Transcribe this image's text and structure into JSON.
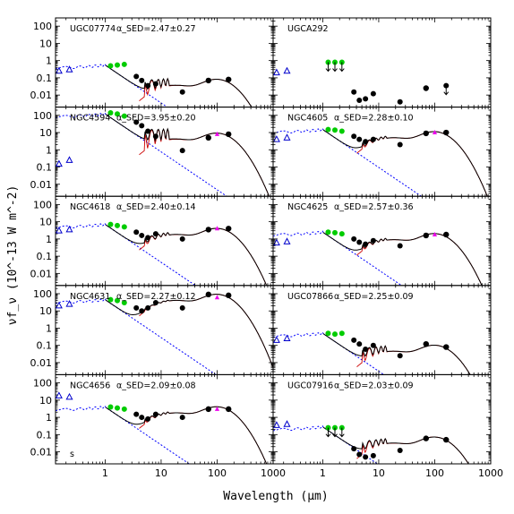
{
  "chart_data": {
    "type": "scatter",
    "layout": "5x2 grid of SED panels",
    "xlabel": "Wavelength (μm)",
    "ylabel": "νf_ν (10^-13 W m^-2)",
    "x_scale": "log",
    "y_scale": "log",
    "xlim": [
      0.13,
      1000
    ],
    "ylim": [
      0.002,
      300
    ],
    "x_ticks": [
      "1",
      "10",
      "100",
      "1000"
    ],
    "y_ticks": [
      "100",
      "10",
      "1",
      "0.1",
      "0.01"
    ],
    "panels": [
      {
        "galaxy": "UGC07774",
        "alpha_label": "α_SED=2.47±0.27",
        "level": 0.55,
        "fir_peak": 0.08,
        "galex": [
          {
            "x": 0.15,
            "y": 0.25
          },
          {
            "x": 0.23,
            "y": 0.3
          }
        ],
        "nir": [
          {
            "x": 1.25,
            "y": 0.5
          },
          {
            "x": 1.65,
            "y": 0.55
          },
          {
            "x": 2.2,
            "y": 0.6
          }
        ],
        "mir": [
          {
            "x": 3.6,
            "y": 0.12
          },
          {
            "x": 4.5,
            "y": 0.07
          },
          {
            "x": 5.8,
            "y": 0.035
          },
          {
            "x": 8,
            "y": 0.045
          },
          {
            "x": 24,
            "y": 0.015
          }
        ],
        "fir": [
          {
            "x": 70,
            "y": 0.07
          },
          {
            "x": 160,
            "y": 0.08
          }
        ]
      },
      {
        "galaxy": "UGCA292",
        "alpha_label": "",
        "level": null,
        "fir_peak": null,
        "galex": [
          {
            "x": 0.15,
            "y": 0.2
          },
          {
            "x": 0.23,
            "y": 0.25
          }
        ],
        "limits_nir": [
          {
            "x": 1.25,
            "y": 0.8
          },
          {
            "x": 1.65,
            "y": 0.8
          },
          {
            "x": 2.2,
            "y": 0.8
          }
        ],
        "mir": [
          {
            "x": 3.6,
            "y": 0.015
          },
          {
            "x": 4.5,
            "y": 0.005
          },
          {
            "x": 5.8,
            "y": 0.006
          },
          {
            "x": 8,
            "y": 0.012
          },
          {
            "x": 24,
            "y": 0.004
          }
        ],
        "fir": [
          {
            "x": 70,
            "y": 0.025
          }
        ],
        "limits_fir": [
          {
            "x": 160,
            "y": 0.035
          }
        ]
      },
      {
        "galaxy": "NGC4594",
        "alpha_label": "α_SED=3.95±0.20",
        "level": 120,
        "fir_peak": 9,
        "galex": [
          {
            "x": 0.15,
            "y": 0.15
          },
          {
            "x": 0.23,
            "y": 0.25
          }
        ],
        "nir": [
          {
            "x": 1.25,
            "y": 140
          },
          {
            "x": 1.65,
            "y": 120
          },
          {
            "x": 2.2,
            "y": 90
          }
        ],
        "mir": [
          {
            "x": 3.6,
            "y": 40
          },
          {
            "x": 4.5,
            "y": 25
          },
          {
            "x": 5.8,
            "y": 12
          },
          {
            "x": 8,
            "y": 6
          },
          {
            "x": 24,
            "y": 0.9
          }
        ],
        "fir": [
          {
            "x": 70,
            "y": 5
          },
          {
            "x": 160,
            "y": 8
          }
        ],
        "pink": [
          {
            "x": 100,
            "y": 8
          }
        ]
      },
      {
        "galaxy": "NGC4605",
        "alpha_label": "α_SED=2.28±0.10",
        "level": 15,
        "fir_peak": 11,
        "galex": [
          {
            "x": 0.15,
            "y": 4
          },
          {
            "x": 0.23,
            "y": 5
          }
        ],
        "nir": [
          {
            "x": 1.25,
            "y": 15
          },
          {
            "x": 1.65,
            "y": 14
          },
          {
            "x": 2.2,
            "y": 12
          }
        ],
        "mir": [
          {
            "x": 3.6,
            "y": 6
          },
          {
            "x": 4.5,
            "y": 4
          },
          {
            "x": 5.8,
            "y": 3
          },
          {
            "x": 8,
            "y": 4
          },
          {
            "x": 24,
            "y": 2
          }
        ],
        "fir": [
          {
            "x": 70,
            "y": 9
          },
          {
            "x": 160,
            "y": 10
          }
        ],
        "pink": [
          {
            "x": 100,
            "y": 10
          }
        ]
      },
      {
        "galaxy": "NGC4618",
        "alpha_label": "α_SED=2.40±0.14",
        "level": 7,
        "fir_peak": 4,
        "galex": [
          {
            "x": 0.15,
            "y": 3
          },
          {
            "x": 0.23,
            "y": 3.5
          }
        ],
        "nir": [
          {
            "x": 1.25,
            "y": 7
          },
          {
            "x": 1.65,
            "y": 6
          },
          {
            "x": 2.2,
            "y": 5
          }
        ],
        "mir": [
          {
            "x": 3.6,
            "y": 2.5
          },
          {
            "x": 4.5,
            "y": 1.6
          },
          {
            "x": 5.8,
            "y": 1.2
          },
          {
            "x": 8,
            "y": 2
          },
          {
            "x": 24,
            "y": 1
          }
        ],
        "fir": [
          {
            "x": 70,
            "y": 3.5
          },
          {
            "x": 160,
            "y": 4
          }
        ],
        "pink": [
          {
            "x": 100,
            "y": 4
          }
        ]
      },
      {
        "galaxy": "NGC4625",
        "alpha_label": "α_SED=2.57±0.36",
        "level": 2.5,
        "fir_peak": 2,
        "galex": [
          {
            "x": 0.15,
            "y": 0.6
          },
          {
            "x": 0.23,
            "y": 0.7
          }
        ],
        "nir": [
          {
            "x": 1.25,
            "y": 2.5
          },
          {
            "x": 1.65,
            "y": 2.3
          },
          {
            "x": 2.2,
            "y": 2
          }
        ],
        "mir": [
          {
            "x": 3.6,
            "y": 1
          },
          {
            "x": 4.5,
            "y": 0.65
          },
          {
            "x": 5.8,
            "y": 0.5
          },
          {
            "x": 8,
            "y": 0.8
          },
          {
            "x": 24,
            "y": 0.4
          }
        ],
        "fir": [
          {
            "x": 70,
            "y": 1.6
          },
          {
            "x": 160,
            "y": 1.8
          }
        ],
        "pink": [
          {
            "x": 100,
            "y": 1.8
          }
        ]
      },
      {
        "galaxy": "NGC4631",
        "alpha_label": "α_SED=2.27±0.12",
        "level": 45,
        "fir_peak": 90,
        "galex": [
          {
            "x": 0.15,
            "y": 20
          },
          {
            "x": 0.23,
            "y": 25
          }
        ],
        "nir": [
          {
            "x": 1.25,
            "y": 45
          },
          {
            "x": 1.65,
            "y": 40
          },
          {
            "x": 2.2,
            "y": 30
          }
        ],
        "mir": [
          {
            "x": 3.6,
            "y": 15
          },
          {
            "x": 4.5,
            "y": 10
          },
          {
            "x": 5.8,
            "y": 15
          },
          {
            "x": 8,
            "y": 30
          },
          {
            "x": 24,
            "y": 15
          }
        ],
        "fir": [
          {
            "x": 70,
            "y": 90
          },
          {
            "x": 160,
            "y": 80
          }
        ],
        "pink": [
          {
            "x": 100,
            "y": 60
          }
        ]
      },
      {
        "galaxy": "UGC07866",
        "alpha_label": "α_SED=2.25±0.09",
        "level": 0.5,
        "fir_peak": 0.1,
        "galex": [
          {
            "x": 0.15,
            "y": 0.2
          },
          {
            "x": 0.23,
            "y": 0.25
          }
        ],
        "nir": [
          {
            "x": 1.25,
            "y": 0.5
          },
          {
            "x": 1.65,
            "y": 0.45
          },
          {
            "x": 2.2,
            "y": 0.5
          }
        ],
        "mir": [
          {
            "x": 3.6,
            "y": 0.2
          },
          {
            "x": 4.5,
            "y": 0.12
          },
          {
            "x": 5.8,
            "y": 0.06
          },
          {
            "x": 8,
            "y": 0.1
          },
          {
            "x": 24,
            "y": 0.025
          }
        ],
        "fir": [
          {
            "x": 70,
            "y": 0.12
          },
          {
            "x": 160,
            "y": 0.08
          }
        ]
      },
      {
        "galaxy": "NGC4656",
        "alpha_label": "α_SED=2.09±0.08",
        "level": 4,
        "fir_peak": 4,
        "galex": [
          {
            "x": 0.15,
            "y": 18
          },
          {
            "x": 0.23,
            "y": 15
          }
        ],
        "nir": [
          {
            "x": 1.25,
            "y": 4
          },
          {
            "x": 1.65,
            "y": 3.5
          },
          {
            "x": 2.2,
            "y": 3
          }
        ],
        "mir": [
          {
            "x": 3.6,
            "y": 1.5
          },
          {
            "x": 4.5,
            "y": 1
          },
          {
            "x": 5.8,
            "y": 0.8
          },
          {
            "x": 8,
            "y": 1.5
          },
          {
            "x": 24,
            "y": 1
          }
        ],
        "fir": [
          {
            "x": 70,
            "y": 3
          },
          {
            "x": 160,
            "y": 3
          }
        ],
        "pink": [
          {
            "x": 100,
            "y": 3
          }
        ],
        "corner_label": "s"
      },
      {
        "galaxy": "UGC07916",
        "alpha_label": "α_SED=2.03±0.09",
        "level": 0.28,
        "fir_peak": 0.07,
        "galex": [
          {
            "x": 0.15,
            "y": 0.35
          },
          {
            "x": 0.23,
            "y": 0.4
          }
        ],
        "limits_nir": [
          {
            "x": 1.25,
            "y": 0.25
          },
          {
            "x": 1.65,
            "y": 0.25
          },
          {
            "x": 2.2,
            "y": 0.25
          }
        ],
        "mir": [
          {
            "x": 3.6,
            "y": 0.015
          },
          {
            "x": 4.5,
            "y": 0.007
          },
          {
            "x": 5.8,
            "y": 0.005
          },
          {
            "x": 8,
            "y": 0.006
          },
          {
            "x": 24,
            "y": 0.012
          }
        ],
        "fir": [
          {
            "x": 70,
            "y": 0.06
          },
          {
            "x": 160,
            "y": 0.05
          }
        ]
      }
    ]
  },
  "colors": {
    "galex": "#0000cc",
    "nir": "#00cc00",
    "mir_fir": "#000000",
    "pink": "#ee00ee",
    "stellar_model": "#0000ff",
    "total_model": "#000000",
    "dust_model": "#cc0000"
  }
}
